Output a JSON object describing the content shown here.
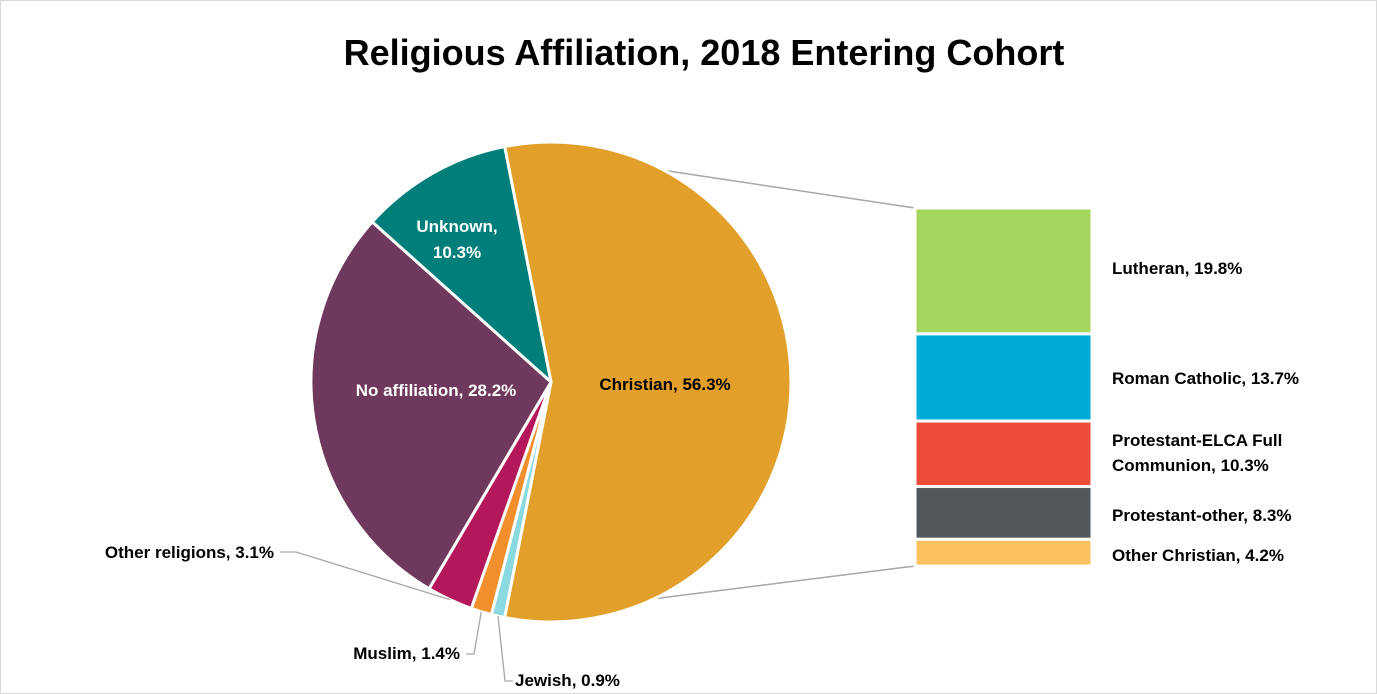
{
  "chart_data": {
    "type": "bar-of-pie",
    "title": "Religious Affiliation, 2018 Entering Cohort",
    "pie": {
      "slices": [
        {
          "name": "Christian",
          "value": 56.3,
          "label": "Christian, 56.3%",
          "color": "#e2a02b",
          "label_color": "#000000"
        },
        {
          "name": "Jewish",
          "value": 0.9,
          "label": "Jewish, 0.9%",
          "color": "#8ad8e0",
          "label_color": "#000000"
        },
        {
          "name": "Muslim",
          "value": 1.4,
          "label": "Muslim, 1.4%",
          "color": "#f28e2b",
          "label_color": "#000000"
        },
        {
          "name": "Other religions",
          "value": 3.1,
          "label": "Other religions, 3.1%",
          "color": "#b5175b",
          "label_color": "#000000"
        },
        {
          "name": "No affiliation",
          "value": 28.2,
          "label": "No affiliation, 28.2%",
          "color": "#6e395d",
          "label_color": "#ffffff"
        },
        {
          "name": "Unknown",
          "value": 10.3,
          "label_lines": [
            "Unknown,",
            "10.3%"
          ],
          "color": "#007e7a",
          "label_color": "#ffffff"
        }
      ]
    },
    "bar": {
      "parent": "Christian",
      "segments": [
        {
          "name": "Lutheran",
          "value": 19.8,
          "label_lines": [
            "Lutheran, 19.8%"
          ],
          "color": "#a4d65e"
        },
        {
          "name": "Roman Catholic",
          "value": 13.7,
          "label_lines": [
            "Roman Catholic, 13.7%"
          ],
          "color": "#00acd7"
        },
        {
          "name": "Protestant-ELCA Full Communion",
          "value": 10.3,
          "label_lines": [
            "Protestant-ELCA Full",
            "Communion, 10.3%"
          ],
          "color": "#ed4c38"
        },
        {
          "name": "Protestant-other",
          "value": 8.3,
          "label_lines": [
            "Protestant-other, 8.3%"
          ],
          "color": "#53575a"
        },
        {
          "name": "Other Christian",
          "value": 4.2,
          "label_lines": [
            "Other Christian, 4.2%"
          ],
          "color": "#fdc260"
        }
      ]
    }
  }
}
